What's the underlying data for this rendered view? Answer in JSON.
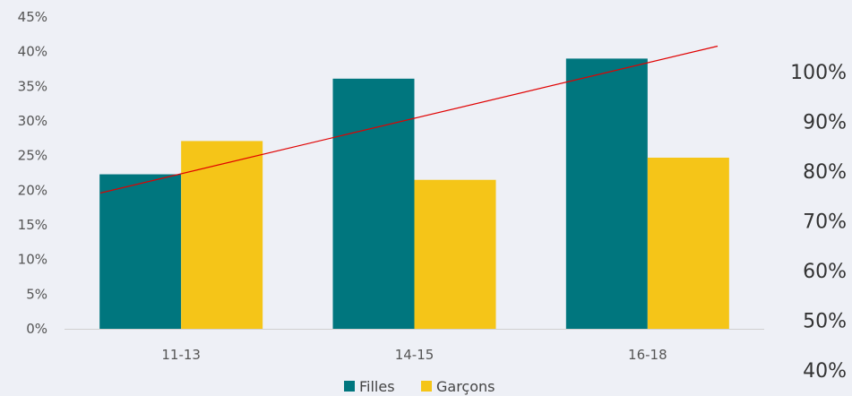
{
  "chart_data": {
    "type": "bar",
    "categories": [
      "11-13",
      "14-15",
      "16-18"
    ],
    "series": [
      {
        "name": "Filles",
        "values": [
          22.3,
          36.1,
          39.0
        ],
        "color": "#00767e"
      },
      {
        "name": "Garçons",
        "values": [
          27.1,
          21.5,
          24.7
        ],
        "color": "#f5c518"
      }
    ],
    "ylim": [
      0,
      45
    ],
    "yticks": [
      "0%",
      "5%",
      "10%",
      "15%",
      "20%",
      "25%",
      "30%",
      "35%",
      "40%",
      "45%"
    ],
    "secondary_axis": {
      "ticks": [
        "100%",
        "90%",
        "80%",
        "70%",
        "60%",
        "50%",
        "40%"
      ]
    },
    "trendline": {
      "color": "#e00000",
      "start_value": 19.6,
      "end_value": 40.8
    },
    "legend": "bottom-center",
    "grid": false
  }
}
